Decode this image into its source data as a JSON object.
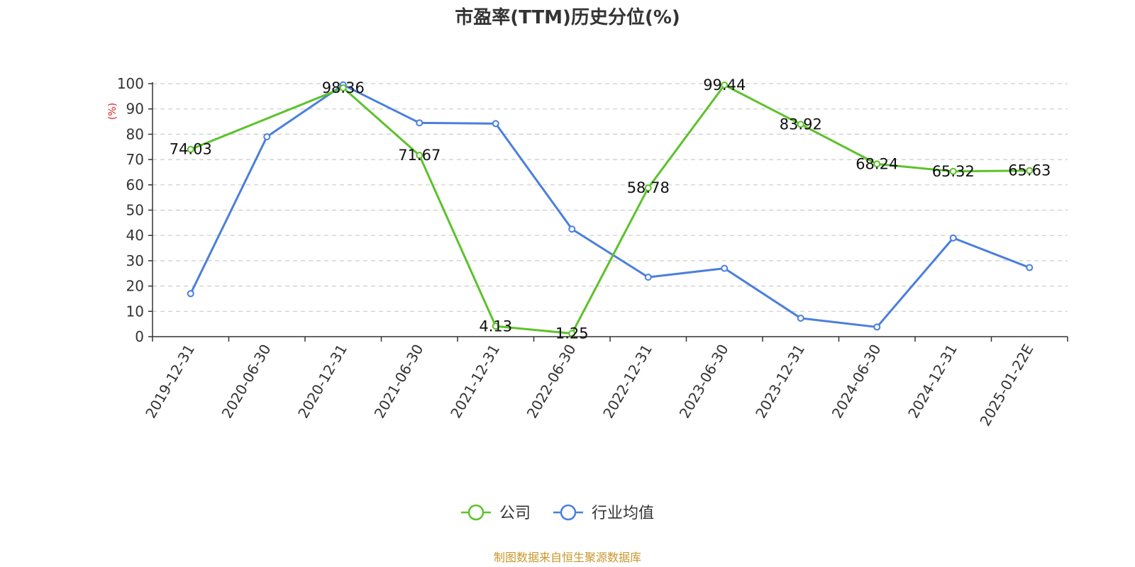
{
  "chart_data": {
    "type": "line",
    "title": "市盈率(TTM)历史分位(%)",
    "ylabel": "(%)",
    "ylim": [
      0,
      100
    ],
    "yticks": [
      0,
      10,
      20,
      30,
      40,
      50,
      60,
      70,
      80,
      90,
      100
    ],
    "grid": true,
    "legend_position": "bottom",
    "categories": [
      "2019-12-31",
      "2020-06-30",
      "2020-12-31",
      "2021-06-30",
      "2021-12-31",
      "2022-06-30",
      "2022-12-31",
      "2023-06-30",
      "2023-12-31",
      "2024-06-30",
      "2024-12-31",
      "2025-01-22E"
    ],
    "series": [
      {
        "name": "公司",
        "color": "#5cc22b",
        "values": [
          74.03,
          null,
          98.36,
          71.67,
          4.13,
          1.25,
          58.78,
          99.44,
          83.92,
          68.24,
          65.32,
          65.63
        ],
        "labels": [
          "74.03",
          "",
          "98.36",
          "71.67",
          "4.13",
          "1.25",
          "58.78",
          "99.44",
          "83.92",
          "68.24",
          "65.32",
          "65.63"
        ]
      },
      {
        "name": "行业均值",
        "color": "#4a7fdc",
        "values": [
          17,
          79,
          99.5,
          84.5,
          84.2,
          42.5,
          23.5,
          27,
          7.3,
          3.8,
          39,
          27.3
        ]
      }
    ],
    "source": "制图数据来自恒生聚源数据库",
    "source_color": "#c8962c",
    "ylabel_color": "#e02020"
  }
}
